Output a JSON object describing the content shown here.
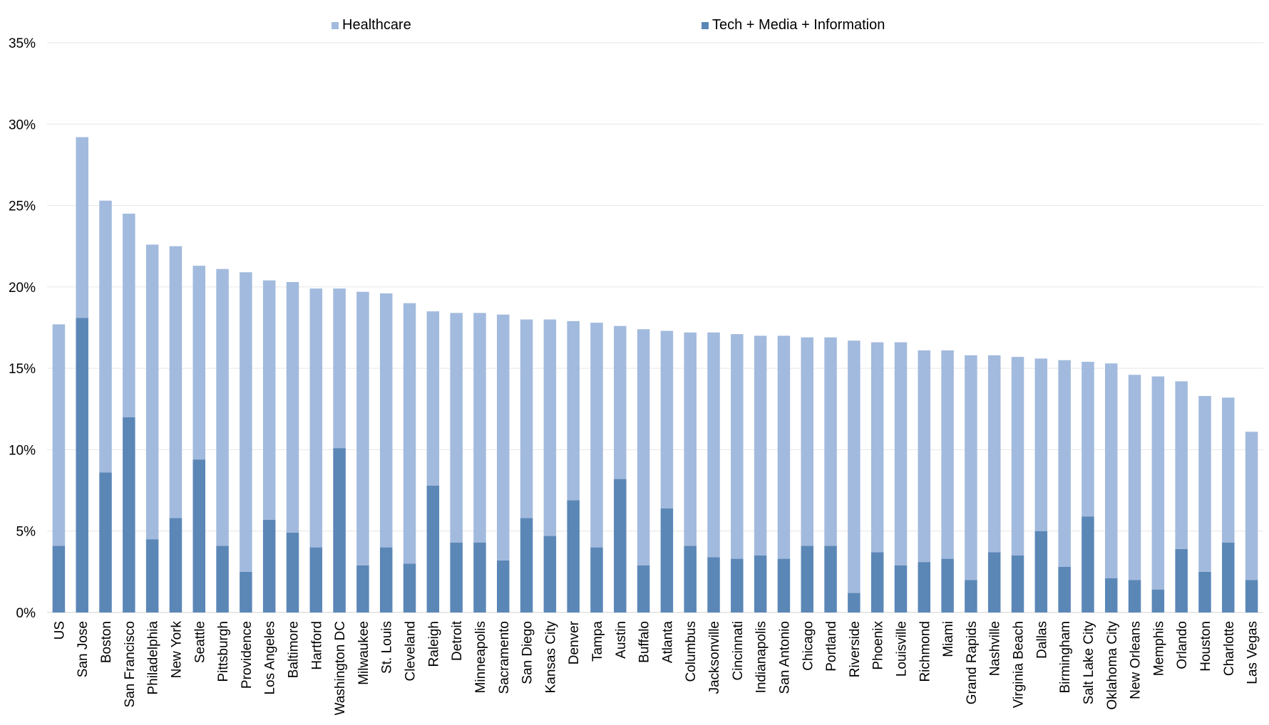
{
  "chart_data": {
    "type": "bar",
    "stacked": true,
    "categories": [
      "US",
      "San Jose",
      "Boston",
      "San Francisco",
      "Philadelphia",
      "New York",
      "Seattle",
      "Pittsburgh",
      "Providence",
      "Los Angeles",
      "Baltimore",
      "Hartford",
      "Washington DC",
      "Milwaukee",
      "St. Louis",
      "Cleveland",
      "Raleigh",
      "Detroit",
      "Minneapolis",
      "Sacramento",
      "San Diego",
      "Kansas City",
      "Denver",
      "Tampa",
      "Austin",
      "Buffalo",
      "Atlanta",
      "Columbus",
      "Jacksonville",
      "Cincinnati",
      "Indianapolis",
      "San Antonio",
      "Chicago",
      "Portland",
      "Riverside",
      "Phoenix",
      "Louisville",
      "Richmond",
      "Miami",
      "Grand Rapids",
      "Nashville",
      "Virginia Beach",
      "Dallas",
      "Birmingham",
      "Salt Lake City",
      "Oklahoma City",
      "New Orleans",
      "Memphis",
      "Orlando",
      "Houston",
      "Charlotte",
      "Las Vegas"
    ],
    "series": [
      {
        "name": "Tech + Media + Information",
        "color": "#5b87b7",
        "values": [
          4.1,
          18.1,
          8.6,
          12.0,
          4.5,
          5.8,
          9.4,
          4.1,
          2.5,
          5.7,
          4.9,
          4.0,
          10.1,
          2.9,
          4.0,
          3.0,
          7.8,
          4.3,
          4.3,
          3.2,
          5.8,
          4.7,
          6.9,
          4.0,
          8.2,
          2.9,
          6.4,
          4.1,
          3.4,
          3.3,
          3.5,
          3.3,
          4.1,
          4.1,
          1.2,
          3.7,
          2.9,
          3.1,
          3.3,
          2.0,
          3.7,
          3.5,
          5.0,
          2.8,
          5.9,
          2.1,
          2.0,
          1.4,
          3.9,
          2.5,
          4.3,
          2.0
        ]
      },
      {
        "name": "Healthcare",
        "color": "#a2badd",
        "values": [
          13.6,
          11.1,
          16.7,
          12.5,
          18.1,
          16.7,
          11.9,
          17.0,
          18.4,
          14.7,
          15.4,
          15.9,
          9.8,
          16.8,
          15.6,
          16.0,
          10.7,
          14.1,
          14.1,
          15.1,
          12.2,
          13.3,
          11.0,
          13.8,
          9.4,
          14.5,
          10.9,
          13.1,
          13.8,
          13.8,
          13.5,
          13.7,
          12.8,
          12.8,
          15.5,
          12.9,
          13.7,
          13.0,
          12.8,
          13.8,
          12.1,
          12.2,
          10.6,
          12.7,
          9.5,
          13.2,
          12.6,
          13.1,
          10.3,
          10.8,
          8.9,
          9.1
        ]
      }
    ],
    "yticks": [
      "0%",
      "5%",
      "10%",
      "15%",
      "20%",
      "25%",
      "30%",
      "35%"
    ],
    "ylim": [
      0,
      35
    ],
    "legend": [
      "Healthcare",
      "Tech + Media + Information"
    ],
    "legend_position": "top",
    "title": "",
    "xlabel": "",
    "ylabel": "",
    "grid": true
  }
}
